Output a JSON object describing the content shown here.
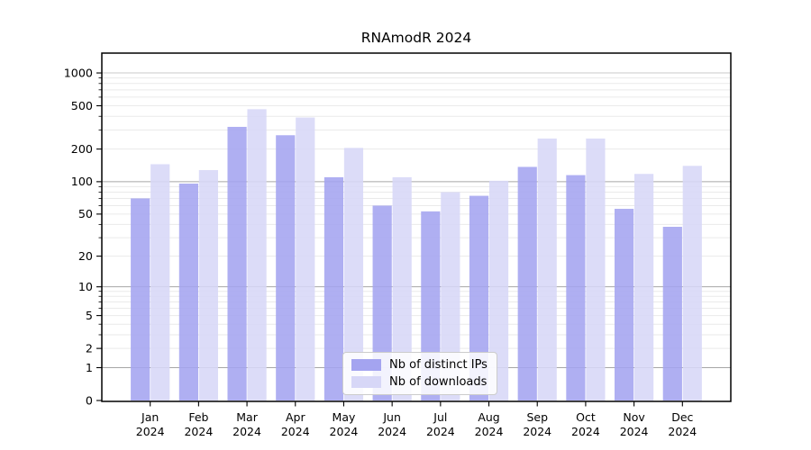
{
  "chart_data": {
    "type": "bar",
    "title": "RNAmodR 2024",
    "categories": [
      "Jan",
      "Feb",
      "Mar",
      "Apr",
      "May",
      "Jun",
      "Jul",
      "Aug",
      "Sep",
      "Oct",
      "Nov",
      "Dec"
    ],
    "year_label": "2024",
    "series": [
      {
        "name": "Nb of distinct IPs",
        "color": "#a4a4f0",
        "values": [
          70,
          96,
          320,
          268,
          110,
          60,
          53,
          74,
          137,
          115,
          56,
          38
        ]
      },
      {
        "name": "Nb of downloads",
        "color": "#d7d7f7",
        "values": [
          145,
          128,
          465,
          390,
          205,
          110,
          80,
          102,
          250,
          250,
          118,
          140
        ]
      }
    ],
    "yscale": "log1p",
    "yticks": [
      0,
      1,
      2,
      5,
      10,
      20,
      50,
      100,
      200,
      500,
      1000
    ],
    "ylim": [
      0,
      1470
    ],
    "grid": "on",
    "legend_position": "lower center",
    "colors": {
      "major_gridline": "#a6a6a6",
      "top_gridline": "#c8c8c8",
      "minor_gridline": "#eaeaea",
      "axis": "#000000"
    }
  }
}
